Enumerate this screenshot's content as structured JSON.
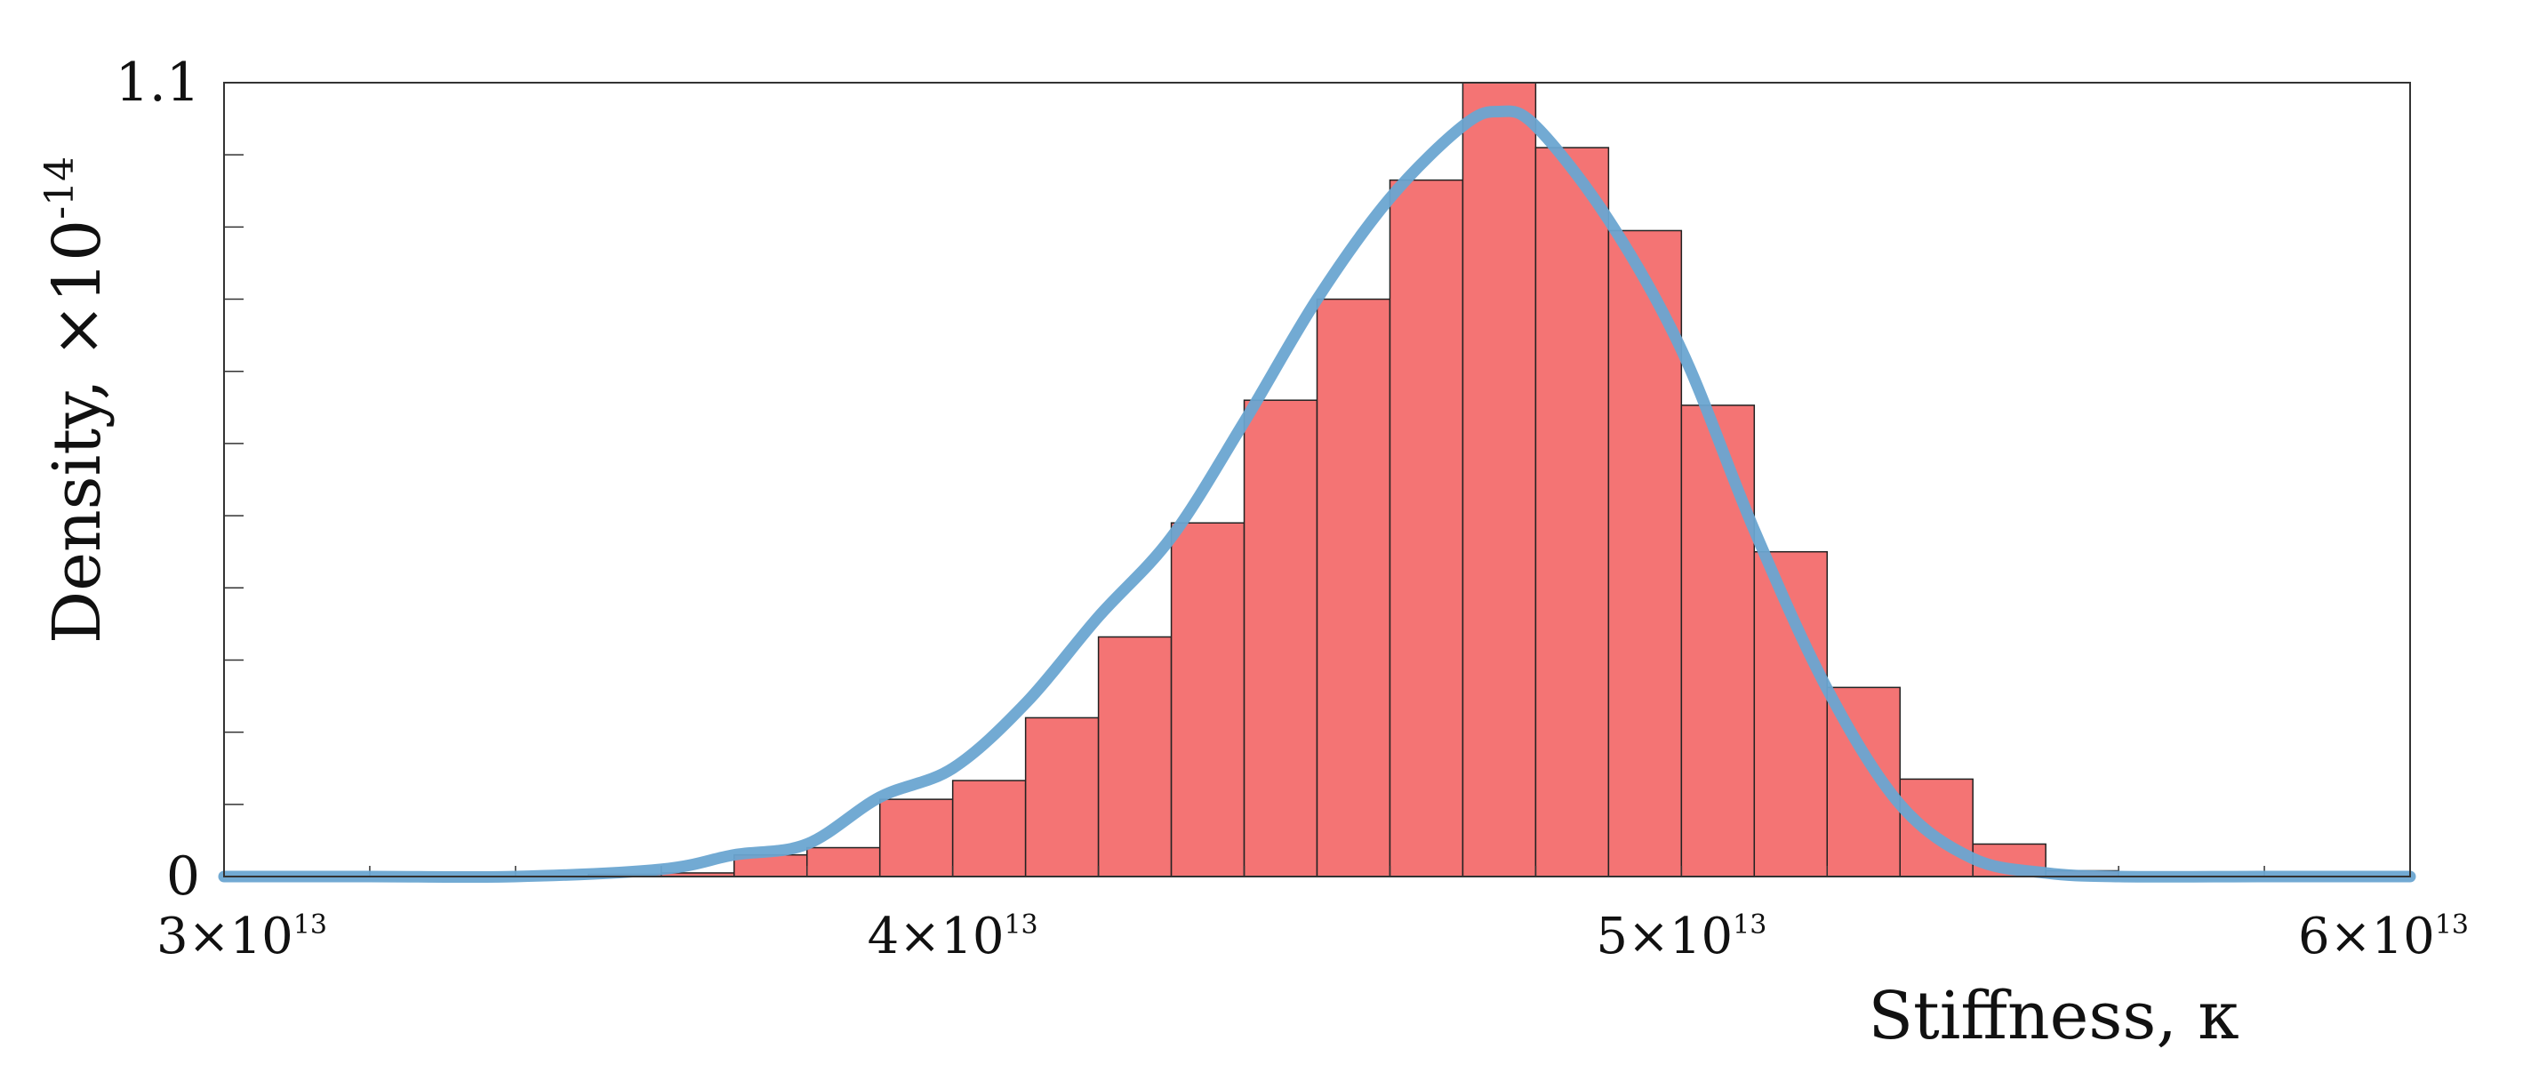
{
  "chart_data": {
    "type": "bar",
    "title": "",
    "xlabel": "Stiffness,  κ",
    "ylabel": "Density,  ×10",
    "ylabel_exponent": "-14",
    "xlim": [
      30000000000000.0,
      60000000000000.0
    ],
    "ylim": [
      0,
      1.1
    ],
    "grid": false,
    "x_ticks": [
      {
        "value": 30000000000000.0,
        "mantissa": "3×10",
        "exponent": "13"
      },
      {
        "value": 40000000000000.0,
        "mantissa": "4×10",
        "exponent": "13"
      },
      {
        "value": 50000000000000.0,
        "mantissa": "5×10",
        "exponent": "13"
      },
      {
        "value": 60000000000000.0,
        "mantissa": "6×10",
        "exponent": "13"
      }
    ],
    "y_ticks": [
      {
        "value": 0,
        "label": "0"
      },
      {
        "value": 1.1,
        "label": "1.1"
      }
    ],
    "bin_edges": [
      30000000000000.0,
      31000000000000.0,
      32000000000000.0,
      33000000000000.0,
      34000000000000.0,
      35000000000000.0,
      36000000000000.0,
      37000000000000.0,
      38000000000000.0,
      39000000000000.0,
      40000000000000.0,
      41000000000000.0,
      42000000000000.0,
      43000000000000.0,
      44000000000000.0,
      45000000000000.0,
      46000000000000.0,
      47000000000000.0,
      48000000000000.0,
      49000000000000.0,
      50000000000000.0,
      51000000000000.0,
      52000000000000.0,
      53000000000000.0,
      54000000000000.0,
      55000000000000.0,
      56000000000000.0,
      57000000000000.0,
      58000000000000.0,
      59000000000000.0,
      60000000000000.0
    ],
    "values": [
      0,
      0,
      0,
      0,
      0,
      0.003,
      0.005,
      0.03,
      0.04,
      0.107,
      0.133,
      0.22,
      0.332,
      0.49,
      0.66,
      0.8,
      0.965,
      1.1,
      1.01,
      0.895,
      0.653,
      0.45,
      0.262,
      0.135,
      0.045,
      0.008,
      0,
      0,
      0,
      0
    ],
    "density_curve": {
      "x": [
        30000000000000.0,
        32000000000000.0,
        34000000000000.0,
        36000000000000.0,
        37000000000000.0,
        38000000000000.0,
        39000000000000.0,
        40000000000000.0,
        41000000000000.0,
        42000000000000.0,
        43000000000000.0,
        44000000000000.0,
        45000000000000.0,
        46000000000000.0,
        47000000000000.0,
        47500000000000.0,
        48000000000000.0,
        49000000000000.0,
        50000000000000.0,
        51000000000000.0,
        52000000000000.0,
        53000000000000.0,
        54000000000000.0,
        55000000000000.0,
        56000000000000.0,
        58000000000000.0,
        60000000000000.0
      ],
      "y": [
        0,
        0,
        0,
        0.01,
        0.03,
        0.045,
        0.11,
        0.15,
        0.24,
        0.36,
        0.47,
        0.63,
        0.8,
        0.94,
        1.04,
        1.06,
        1.04,
        0.91,
        0.73,
        0.48,
        0.26,
        0.1,
        0.025,
        0.005,
        0,
        0,
        0
      ]
    },
    "colors": {
      "bar_fill": "#f47474",
      "bar_edge": "#222222",
      "curve": "#6aa5d1"
    }
  }
}
